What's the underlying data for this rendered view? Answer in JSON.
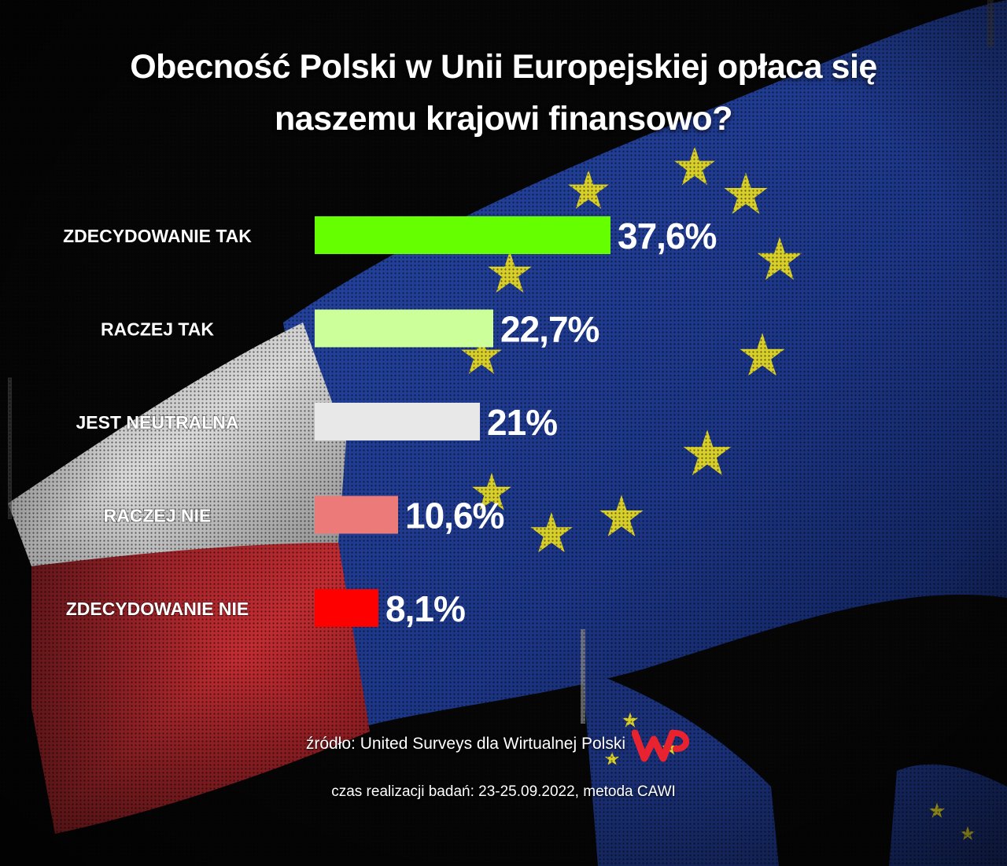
{
  "chart_data": {
    "type": "bar",
    "orientation": "horizontal",
    "title": "Obecność Polski w Unii Europejskiej opłaca się naszemu krajowi finansowo?",
    "title_lines": [
      "Obecność Polski w Unii Europejskiej opłaca się",
      "naszemu krajowi finansowo?"
    ],
    "categories": [
      "ZDECYDOWANIE TAK",
      "RACZEJ TAK",
      "JEST NEUTRALNA",
      "RACZEJ NIE",
      "ZDECYDOWANIE NIE"
    ],
    "values": [
      37.6,
      22.7,
      21,
      10.6,
      8.1
    ],
    "value_labels": [
      "37,6%",
      "22,7%",
      "21%",
      "10,6%",
      "8,1%"
    ],
    "colors": [
      "#66ff00",
      "#ccff99",
      "#e8e8e8",
      "#ec7a78",
      "#ff0000"
    ],
    "unit": "%",
    "grid": false,
    "legend": "none"
  },
  "footer": {
    "source": "źródło: United Surveys dla Wirtualnej Polski",
    "fieldwork": "czas realizacji badań: 23-25.09.2022, metoda CAWI"
  },
  "logo": {
    "icon": "wp-logo-icon",
    "color": "#e8232f",
    "text": "WP"
  },
  "background": {
    "description_icon": "flags-photo",
    "eu_blue": "#1f3a8a",
    "eu_star": "#d8cf2a",
    "pl_white": "#d6d6d6",
    "pl_red": "#b8262b"
  }
}
